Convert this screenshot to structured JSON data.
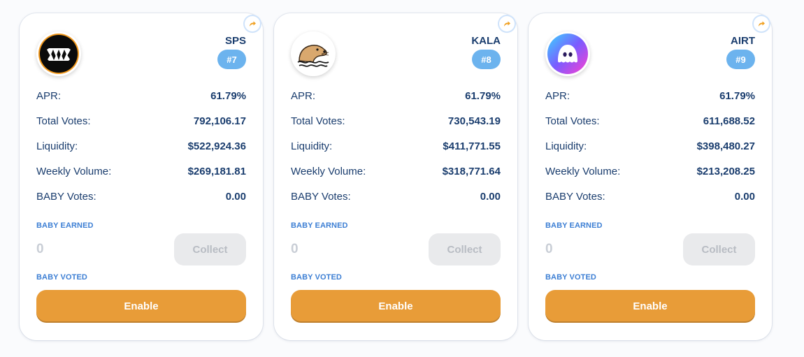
{
  "colors": {
    "accent": "#e89c38",
    "rank_badge": "#6cb3ee",
    "text": "#1a3d6e",
    "label_blue": "#3d7fd4",
    "disabled": "#e9eaec"
  },
  "cards": [
    {
      "symbol": "SPS",
      "rank": "#7",
      "logo_icon": "sps-fang-mouth-icon",
      "stats": [
        {
          "label": "APR:",
          "value": "61.79%"
        },
        {
          "label": "Total Votes:",
          "value": "792,106.17"
        },
        {
          "label": "Liquidity:",
          "value": "$522,924.36"
        },
        {
          "label": "Weekly Volume:",
          "value": "$269,181.81"
        },
        {
          "label": "BABY Votes:",
          "value": "0.00"
        }
      ],
      "earned_label": "BABY EARNED",
      "earned_value": "0",
      "collect_label": "Collect",
      "voted_label": "BABY VOTED",
      "enable_label": "Enable"
    },
    {
      "symbol": "KALA",
      "rank": "#8",
      "logo_icon": "kala-seal-icon",
      "stats": [
        {
          "label": "APR:",
          "value": "61.79%"
        },
        {
          "label": "Total Votes:",
          "value": "730,543.19"
        },
        {
          "label": "Liquidity:",
          "value": "$411,771.55"
        },
        {
          "label": "Weekly Volume:",
          "value": "$318,771.64"
        },
        {
          "label": "BABY Votes:",
          "value": "0.00"
        }
      ],
      "earned_label": "BABY EARNED",
      "earned_value": "0",
      "collect_label": "Collect",
      "voted_label": "BABY VOTED",
      "enable_label": "Enable"
    },
    {
      "symbol": "AIRT",
      "rank": "#9",
      "logo_icon": "airt-blob-icon",
      "stats": [
        {
          "label": "APR:",
          "value": "61.79%"
        },
        {
          "label": "Total Votes:",
          "value": "611,688.52"
        },
        {
          "label": "Liquidity:",
          "value": "$398,480.27"
        },
        {
          "label": "Weekly Volume:",
          "value": "$213,208.25"
        },
        {
          "label": "BABY Votes:",
          "value": "0.00"
        }
      ],
      "earned_label": "BABY EARNED",
      "earned_value": "0",
      "collect_label": "Collect",
      "voted_label": "BABY VOTED",
      "enable_label": "Enable"
    }
  ]
}
